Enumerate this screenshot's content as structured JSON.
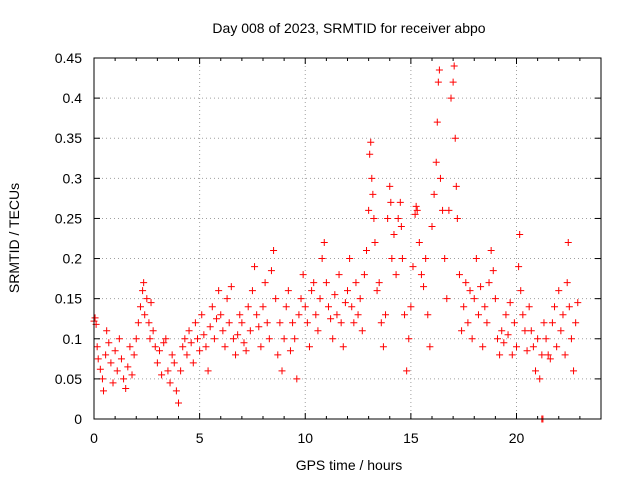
{
  "chart_data": {
    "type": "scatter",
    "title": "Day 008 of 2023, SRMTID for receiver abpo",
    "xlabel": "GPS time / hours",
    "ylabel": "SRMTID / TECUs",
    "xlim": [
      0,
      24
    ],
    "ylim": [
      0,
      0.45
    ],
    "x_ticks": [
      0,
      5,
      10,
      15,
      20
    ],
    "x_tick_labels": [
      "0",
      "5",
      "10",
      "15",
      "20"
    ],
    "y_ticks": [
      0,
      0.05,
      0.1,
      0.15,
      0.2,
      0.25,
      0.3,
      0.35,
      0.4,
      0.45
    ],
    "y_tick_labels": [
      "0",
      "0.05",
      "0.1",
      "0.15",
      "0.2",
      "0.25",
      "0.3",
      "0.35",
      "0.4",
      "0.45"
    ],
    "grid": true,
    "marker": "+",
    "color": "#ff0000",
    "series": [
      {
        "name": "SRMTID",
        "points": [
          [
            0.0,
            0.122
          ],
          [
            0.05,
            0.126
          ],
          [
            0.1,
            0.118
          ],
          [
            0.15,
            0.09
          ],
          [
            0.2,
            0.075
          ],
          [
            0.3,
            0.062
          ],
          [
            0.4,
            0.05
          ],
          [
            0.45,
            0.035
          ],
          [
            0.55,
            0.08
          ],
          [
            0.6,
            0.11
          ],
          [
            0.7,
            0.095
          ],
          [
            0.8,
            0.07
          ],
          [
            0.9,
            0.045
          ],
          [
            1.0,
            0.085
          ],
          [
            1.1,
            0.06
          ],
          [
            1.2,
            0.1
          ],
          [
            1.3,
            0.075
          ],
          [
            1.4,
            0.05
          ],
          [
            1.5,
            0.038
          ],
          [
            1.6,
            0.065
          ],
          [
            1.7,
            0.09
          ],
          [
            1.8,
            0.055
          ],
          [
            1.9,
            0.08
          ],
          [
            2.0,
            0.1
          ],
          [
            2.1,
            0.12
          ],
          [
            2.2,
            0.14
          ],
          [
            2.3,
            0.16
          ],
          [
            2.35,
            0.17
          ],
          [
            2.4,
            0.13
          ],
          [
            2.5,
            0.15
          ],
          [
            2.6,
            0.12
          ],
          [
            2.65,
            0.1
          ],
          [
            2.7,
            0.145
          ],
          [
            2.8,
            0.11
          ],
          [
            2.9,
            0.09
          ],
          [
            3.0,
            0.07
          ],
          [
            3.1,
            0.085
          ],
          [
            3.2,
            0.055
          ],
          [
            3.3,
            0.095
          ],
          [
            3.4,
            0.1
          ],
          [
            3.5,
            0.06
          ],
          [
            3.6,
            0.045
          ],
          [
            3.7,
            0.08
          ],
          [
            3.8,
            0.07
          ],
          [
            3.9,
            0.035
          ],
          [
            4.0,
            0.02
          ],
          [
            4.1,
            0.06
          ],
          [
            4.2,
            0.09
          ],
          [
            4.3,
            0.1
          ],
          [
            4.4,
            0.08
          ],
          [
            4.5,
            0.11
          ],
          [
            4.6,
            0.095
          ],
          [
            4.7,
            0.07
          ],
          [
            4.8,
            0.12
          ],
          [
            4.9,
            0.1
          ],
          [
            5.0,
            0.085
          ],
          [
            5.1,
            0.13
          ],
          [
            5.2,
            0.105
          ],
          [
            5.3,
            0.09
          ],
          [
            5.4,
            0.06
          ],
          [
            5.5,
            0.115
          ],
          [
            5.6,
            0.14
          ],
          [
            5.7,
            0.1
          ],
          [
            5.8,
            0.125
          ],
          [
            5.9,
            0.16
          ],
          [
            6.0,
            0.13
          ],
          [
            6.1,
            0.11
          ],
          [
            6.2,
            0.09
          ],
          [
            6.3,
            0.15
          ],
          [
            6.4,
            0.12
          ],
          [
            6.5,
            0.165
          ],
          [
            6.6,
            0.1
          ],
          [
            6.7,
            0.08
          ],
          [
            6.8,
            0.105
          ],
          [
            6.9,
            0.13
          ],
          [
            7.0,
            0.12
          ],
          [
            7.1,
            0.095
          ],
          [
            7.2,
            0.085
          ],
          [
            7.3,
            0.14
          ],
          [
            7.4,
            0.11
          ],
          [
            7.5,
            0.16
          ],
          [
            7.6,
            0.19
          ],
          [
            7.7,
            0.13
          ],
          [
            7.8,
            0.115
          ],
          [
            7.9,
            0.09
          ],
          [
            8.0,
            0.14
          ],
          [
            8.1,
            0.17
          ],
          [
            8.2,
            0.12
          ],
          [
            8.3,
            0.1
          ],
          [
            8.4,
            0.185
          ],
          [
            8.5,
            0.21
          ],
          [
            8.6,
            0.15
          ],
          [
            8.7,
            0.08
          ],
          [
            8.8,
            0.12
          ],
          [
            8.9,
            0.06
          ],
          [
            9.0,
            0.1
          ],
          [
            9.1,
            0.14
          ],
          [
            9.2,
            0.16
          ],
          [
            9.3,
            0.085
          ],
          [
            9.4,
            0.12
          ],
          [
            9.5,
            0.1
          ],
          [
            9.6,
            0.05
          ],
          [
            9.7,
            0.13
          ],
          [
            9.8,
            0.15
          ],
          [
            9.9,
            0.18
          ],
          [
            10.0,
            0.14
          ],
          [
            10.1,
            0.12
          ],
          [
            10.2,
            0.09
          ],
          [
            10.3,
            0.16
          ],
          [
            10.4,
            0.17
          ],
          [
            10.5,
            0.13
          ],
          [
            10.6,
            0.11
          ],
          [
            10.7,
            0.15
          ],
          [
            10.8,
            0.2
          ],
          [
            10.9,
            0.22
          ],
          [
            11.0,
            0.17
          ],
          [
            11.1,
            0.14
          ],
          [
            11.2,
            0.125
          ],
          [
            11.3,
            0.1
          ],
          [
            11.4,
            0.155
          ],
          [
            11.5,
            0.13
          ],
          [
            11.6,
            0.18
          ],
          [
            11.7,
            0.12
          ],
          [
            11.8,
            0.09
          ],
          [
            11.9,
            0.145
          ],
          [
            12.0,
            0.16
          ],
          [
            12.1,
            0.2
          ],
          [
            12.2,
            0.14
          ],
          [
            12.3,
            0.12
          ],
          [
            12.4,
            0.17
          ],
          [
            12.5,
            0.13
          ],
          [
            12.6,
            0.15
          ],
          [
            12.7,
            0.11
          ],
          [
            12.8,
            0.18
          ],
          [
            12.9,
            0.21
          ],
          [
            13.0,
            0.26
          ],
          [
            13.05,
            0.33
          ],
          [
            13.1,
            0.345
          ],
          [
            13.15,
            0.3
          ],
          [
            13.2,
            0.28
          ],
          [
            13.25,
            0.25
          ],
          [
            13.3,
            0.22
          ],
          [
            13.4,
            0.16
          ],
          [
            13.5,
            0.17
          ],
          [
            13.6,
            0.12
          ],
          [
            13.7,
            0.09
          ],
          [
            13.8,
            0.13
          ],
          [
            13.9,
            0.25
          ],
          [
            14.0,
            0.29
          ],
          [
            14.05,
            0.27
          ],
          [
            14.1,
            0.2
          ],
          [
            14.2,
            0.23
          ],
          [
            14.3,
            0.18
          ],
          [
            14.4,
            0.25
          ],
          [
            14.5,
            0.27
          ],
          [
            14.55,
            0.24
          ],
          [
            14.6,
            0.2
          ],
          [
            14.7,
            0.13
          ],
          [
            14.8,
            0.06
          ],
          [
            14.9,
            0.1
          ],
          [
            15.0,
            0.14
          ],
          [
            15.1,
            0.19
          ],
          [
            15.2,
            0.255
          ],
          [
            15.25,
            0.265
          ],
          [
            15.3,
            0.26
          ],
          [
            15.4,
            0.22
          ],
          [
            15.5,
            0.18
          ],
          [
            15.6,
            0.165
          ],
          [
            15.7,
            0.2
          ],
          [
            15.8,
            0.13
          ],
          [
            15.9,
            0.09
          ],
          [
            16.0,
            0.24
          ],
          [
            16.1,
            0.28
          ],
          [
            16.2,
            0.32
          ],
          [
            16.25,
            0.37
          ],
          [
            16.3,
            0.42
          ],
          [
            16.35,
            0.435
          ],
          [
            16.4,
            0.3
          ],
          [
            16.5,
            0.26
          ],
          [
            16.6,
            0.2
          ],
          [
            16.7,
            0.15
          ],
          [
            16.8,
            0.26
          ],
          [
            16.9,
            0.4
          ],
          [
            17.0,
            0.42
          ],
          [
            17.05,
            0.44
          ],
          [
            17.1,
            0.35
          ],
          [
            17.15,
            0.29
          ],
          [
            17.2,
            0.25
          ],
          [
            17.3,
            0.18
          ],
          [
            17.4,
            0.11
          ],
          [
            17.5,
            0.14
          ],
          [
            17.6,
            0.17
          ],
          [
            17.7,
            0.12
          ],
          [
            17.8,
            0.16
          ],
          [
            17.9,
            0.1
          ],
          [
            18.0,
            0.15
          ],
          [
            18.1,
            0.2
          ],
          [
            18.2,
            0.13
          ],
          [
            18.3,
            0.165
          ],
          [
            18.4,
            0.09
          ],
          [
            18.5,
            0.14
          ],
          [
            18.6,
            0.12
          ],
          [
            18.7,
            0.17
          ],
          [
            18.8,
            0.21
          ],
          [
            18.9,
            0.185
          ],
          [
            19.0,
            0.15
          ],
          [
            19.1,
            0.1
          ],
          [
            19.2,
            0.08
          ],
          [
            19.3,
            0.11
          ],
          [
            19.4,
            0.095
          ],
          [
            19.5,
            0.13
          ],
          [
            19.6,
            0.105
          ],
          [
            19.7,
            0.145
          ],
          [
            19.8,
            0.08
          ],
          [
            19.9,
            0.12
          ],
          [
            20.0,
            0.09
          ],
          [
            20.1,
            0.19
          ],
          [
            20.15,
            0.23
          ],
          [
            20.2,
            0.16
          ],
          [
            20.3,
            0.13
          ],
          [
            20.4,
            0.11
          ],
          [
            20.5,
            0.085
          ],
          [
            20.6,
            0.14
          ],
          [
            20.7,
            0.11
          ],
          [
            20.8,
            0.09
          ],
          [
            20.9,
            0.06
          ],
          [
            21.0,
            0.1
          ],
          [
            21.1,
            0.05
          ],
          [
            21.2,
            0.08
          ],
          [
            21.3,
            0.12
          ],
          [
            21.4,
            0.1
          ],
          [
            21.5,
            0.08
          ],
          [
            21.6,
            0.075
          ],
          [
            21.7,
            0.12
          ],
          [
            21.8,
            0.14
          ],
          [
            21.9,
            0.09
          ],
          [
            22.0,
            0.16
          ],
          [
            22.1,
            0.11
          ],
          [
            22.2,
            0.13
          ],
          [
            22.3,
            0.08
          ],
          [
            22.4,
            0.17
          ],
          [
            22.45,
            0.22
          ],
          [
            22.5,
            0.14
          ],
          [
            22.6,
            0.1
          ],
          [
            22.7,
            0.06
          ],
          [
            22.8,
            0.12
          ],
          [
            22.9,
            0.145
          ],
          [
            21.2,
            0.0
          ],
          [
            21.25,
            0.0
          ]
        ]
      }
    ]
  }
}
